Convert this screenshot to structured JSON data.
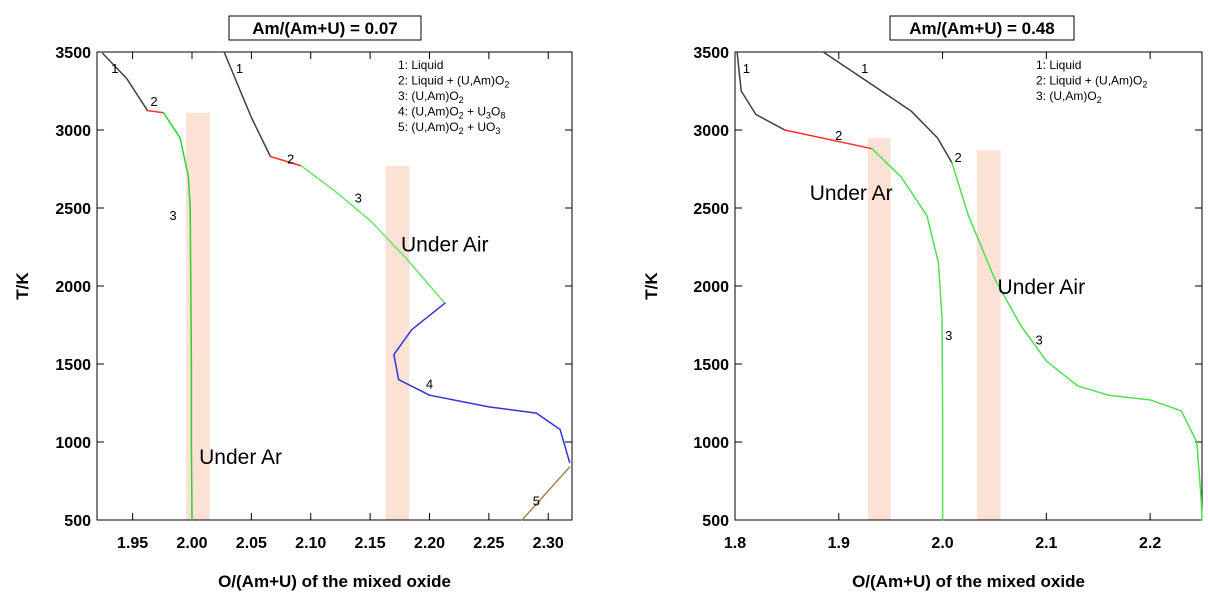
{
  "chart_data": [
    {
      "type": "line",
      "title": "Am/(Am+U)  = 0.07",
      "xlabel": "O/(Am+U) of the mixed oxide",
      "ylabel": "T/K",
      "xlim": [
        1.92,
        2.32
      ],
      "ylim": [
        500,
        3500
      ],
      "xticks": [
        1.95,
        2.0,
        2.05,
        2.1,
        2.15,
        2.2,
        2.25,
        2.3
      ],
      "xtick_labels": [
        "1.95",
        "2.00",
        "2.05",
        "2.10",
        "2.15",
        "2.20",
        "2.25",
        "2.30"
      ],
      "yticks": [
        500,
        1000,
        1500,
        2000,
        2500,
        3000,
        3500
      ],
      "ytick_labels": [
        "500",
        "1000",
        "1500",
        "2000",
        "2500",
        "3000",
        "3500"
      ],
      "legend": {
        "placement": "top-right",
        "entries": [
          [
            "1: Liquid"
          ],
          [
            "2: Liquid + (U,Am)O",
            {
              "t": "2",
              "sub": true
            }
          ],
          [
            "3: (U,Am)O",
            {
              "t": "2",
              "sub": true
            }
          ],
          [
            "4: (U,Am)O",
            {
              "t": "2",
              "sub": true
            },
            " + U",
            {
              "t": "3",
              "sub": true
            },
            "O",
            {
              "t": "8",
              "sub": true
            }
          ],
          [
            "5: (U,Am)O",
            {
              "t": "2",
              "sub": true
            },
            " + UO",
            {
              "t": "3",
              "sub": true
            }
          ]
        ]
      },
      "series": [
        {
          "color": "#404040",
          "points": [
            [
              1.925,
              3490
            ],
            [
              1.945,
              3330
            ],
            [
              1.962,
              3130
            ]
          ]
        },
        {
          "color": "#ff3030",
          "points": [
            [
              1.962,
              3125
            ],
            [
              1.976,
              3110
            ]
          ]
        },
        {
          "color": "#30d030",
          "points": [
            [
              1.976,
              3110
            ],
            [
              1.99,
              2950
            ],
            [
              1.997,
              2700
            ],
            [
              1.9985,
              2500
            ],
            [
              1.999,
              2000
            ],
            [
              1.9995,
              1500
            ],
            [
              1.9995,
              1000
            ],
            [
              2.0,
              500
            ]
          ]
        },
        {
          "color": "#404040",
          "points": [
            [
              2.027,
              3500
            ],
            [
              2.05,
              3080
            ],
            [
              2.066,
              2830
            ]
          ]
        },
        {
          "color": "#ff3030",
          "points": [
            [
              2.066,
              2830
            ],
            [
              2.092,
              2770
            ]
          ]
        },
        {
          "color": "#70e070",
          "points": [
            [
              2.092,
              2770
            ],
            [
              2.12,
              2610
            ],
            [
              2.15,
              2420
            ],
            [
              2.18,
              2180
            ],
            [
              2.213,
              1890
            ]
          ]
        },
        {
          "color": "#3333dd",
          "points": [
            [
              2.213,
              1890
            ],
            [
              2.185,
              1720
            ],
            [
              2.17,
              1560
            ],
            [
              2.174,
              1400
            ],
            [
              2.2,
              1300
            ],
            [
              2.25,
              1225
            ],
            [
              2.29,
              1185
            ],
            [
              2.31,
              1080
            ],
            [
              2.318,
              870
            ]
          ]
        },
        {
          "color": "#a08850",
          "points": [
            [
              2.278,
              500
            ],
            [
              2.318,
              840
            ]
          ]
        }
      ],
      "labels": [
        {
          "text": "1",
          "x": 1.935,
          "y": 3390
        },
        {
          "text": "2",
          "x": 1.968,
          "y": 3180
        },
        {
          "text": "3",
          "x": 1.984,
          "y": 2450
        },
        {
          "text": "1",
          "x": 2.04,
          "y": 3390
        },
        {
          "text": "2",
          "x": 2.083,
          "y": 2810
        },
        {
          "text": "3",
          "x": 2.14,
          "y": 2560
        },
        {
          "text": "4",
          "x": 2.2,
          "y": 1370
        },
        {
          "text": "5",
          "x": 2.29,
          "y": 620
        }
      ],
      "bars": [
        {
          "x0": 1.995,
          "x1": 2.015,
          "y0": 500,
          "y1": 3110
        },
        {
          "x0": 2.163,
          "x1": 2.183,
          "y0": 500,
          "y1": 2770
        }
      ],
      "annotations": [
        {
          "text": "Under Air",
          "x": 2.176,
          "y": 2220
        },
        {
          "text": "Under Ar",
          "x": 2.006,
          "y": 860
        }
      ]
    },
    {
      "type": "line",
      "title": "Am/(Am+U)  = 0.48",
      "xlabel": "O/(Am+U) of the mixed oxide",
      "ylabel": "T/K",
      "xlim": [
        1.8,
        2.25
      ],
      "ylim": [
        500,
        3500
      ],
      "xticks": [
        1.8,
        1.9,
        2.0,
        2.1,
        2.2
      ],
      "xtick_labels": [
        "1.8",
        "1.9",
        "2.0",
        "2.1",
        "2.2"
      ],
      "yticks": [
        500,
        1000,
        1500,
        2000,
        2500,
        3000,
        3500
      ],
      "ytick_labels": [
        "500",
        "1000",
        "1500",
        "2000",
        "2500",
        "3000",
        "3500"
      ],
      "legend": {
        "placement": "top-right",
        "entries": [
          [
            "1: Liquid"
          ],
          [
            "2: Liquid + (U,Am)O",
            {
              "t": "2",
              "sub": true
            }
          ],
          [
            "3: (U,Am)O",
            {
              "t": "2",
              "sub": true
            }
          ]
        ]
      },
      "series": [
        {
          "color": "#404040",
          "points": [
            [
              1.802,
              3500
            ],
            [
              1.806,
              3250
            ],
            [
              1.82,
              3100
            ],
            [
              1.848,
              3000
            ]
          ]
        },
        {
          "color": "#ff3030",
          "points": [
            [
              1.848,
              3000
            ],
            [
              1.932,
              2880
            ]
          ]
        },
        {
          "color": "#50e050",
          "points": [
            [
              1.932,
              2880
            ],
            [
              1.96,
              2700
            ],
            [
              1.985,
              2450
            ],
            [
              1.996,
              2150
            ],
            [
              1.9995,
              1800
            ],
            [
              2.0,
              1200
            ],
            [
              2.0,
              500
            ]
          ]
        },
        {
          "color": "#404040",
          "points": [
            [
              1.885,
              3500
            ],
            [
              1.93,
              3300
            ],
            [
              1.97,
              3120
            ],
            [
              1.995,
              2950
            ],
            [
              2.009,
              2790
            ]
          ]
        },
        {
          "color": "#50e050",
          "points": [
            [
              2.009,
              2790
            ],
            [
              2.025,
              2450
            ],
            [
              2.05,
              2050
            ],
            [
              2.075,
              1750
            ],
            [
              2.1,
              1520
            ],
            [
              2.13,
              1360
            ],
            [
              2.16,
              1300
            ],
            [
              2.2,
              1270
            ],
            [
              2.23,
              1200
            ],
            [
              2.245,
              1000
            ],
            [
              2.249,
              650
            ],
            [
              2.25,
              500
            ]
          ]
        }
      ],
      "labels": [
        {
          "text": "1",
          "x": 1.811,
          "y": 3390
        },
        {
          "text": "2",
          "x": 1.9,
          "y": 2960
        },
        {
          "text": "1",
          "x": 1.925,
          "y": 3390
        },
        {
          "text": "2",
          "x": 2.015,
          "y": 2820
        },
        {
          "text": "3",
          "x": 2.006,
          "y": 1680
        },
        {
          "text": "3",
          "x": 2.093,
          "y": 1650
        }
      ],
      "bars": [
        {
          "x0": 1.928,
          "x1": 1.95,
          "y0": 500,
          "y1": 2950
        },
        {
          "x0": 2.033,
          "x1": 2.056,
          "y0": 500,
          "y1": 2870
        }
      ],
      "annotations": [
        {
          "text": "Under Ar",
          "x": 1.872,
          "y": 2550
        },
        {
          "text": "Under Air",
          "x": 2.053,
          "y": 1950
        }
      ]
    }
  ]
}
